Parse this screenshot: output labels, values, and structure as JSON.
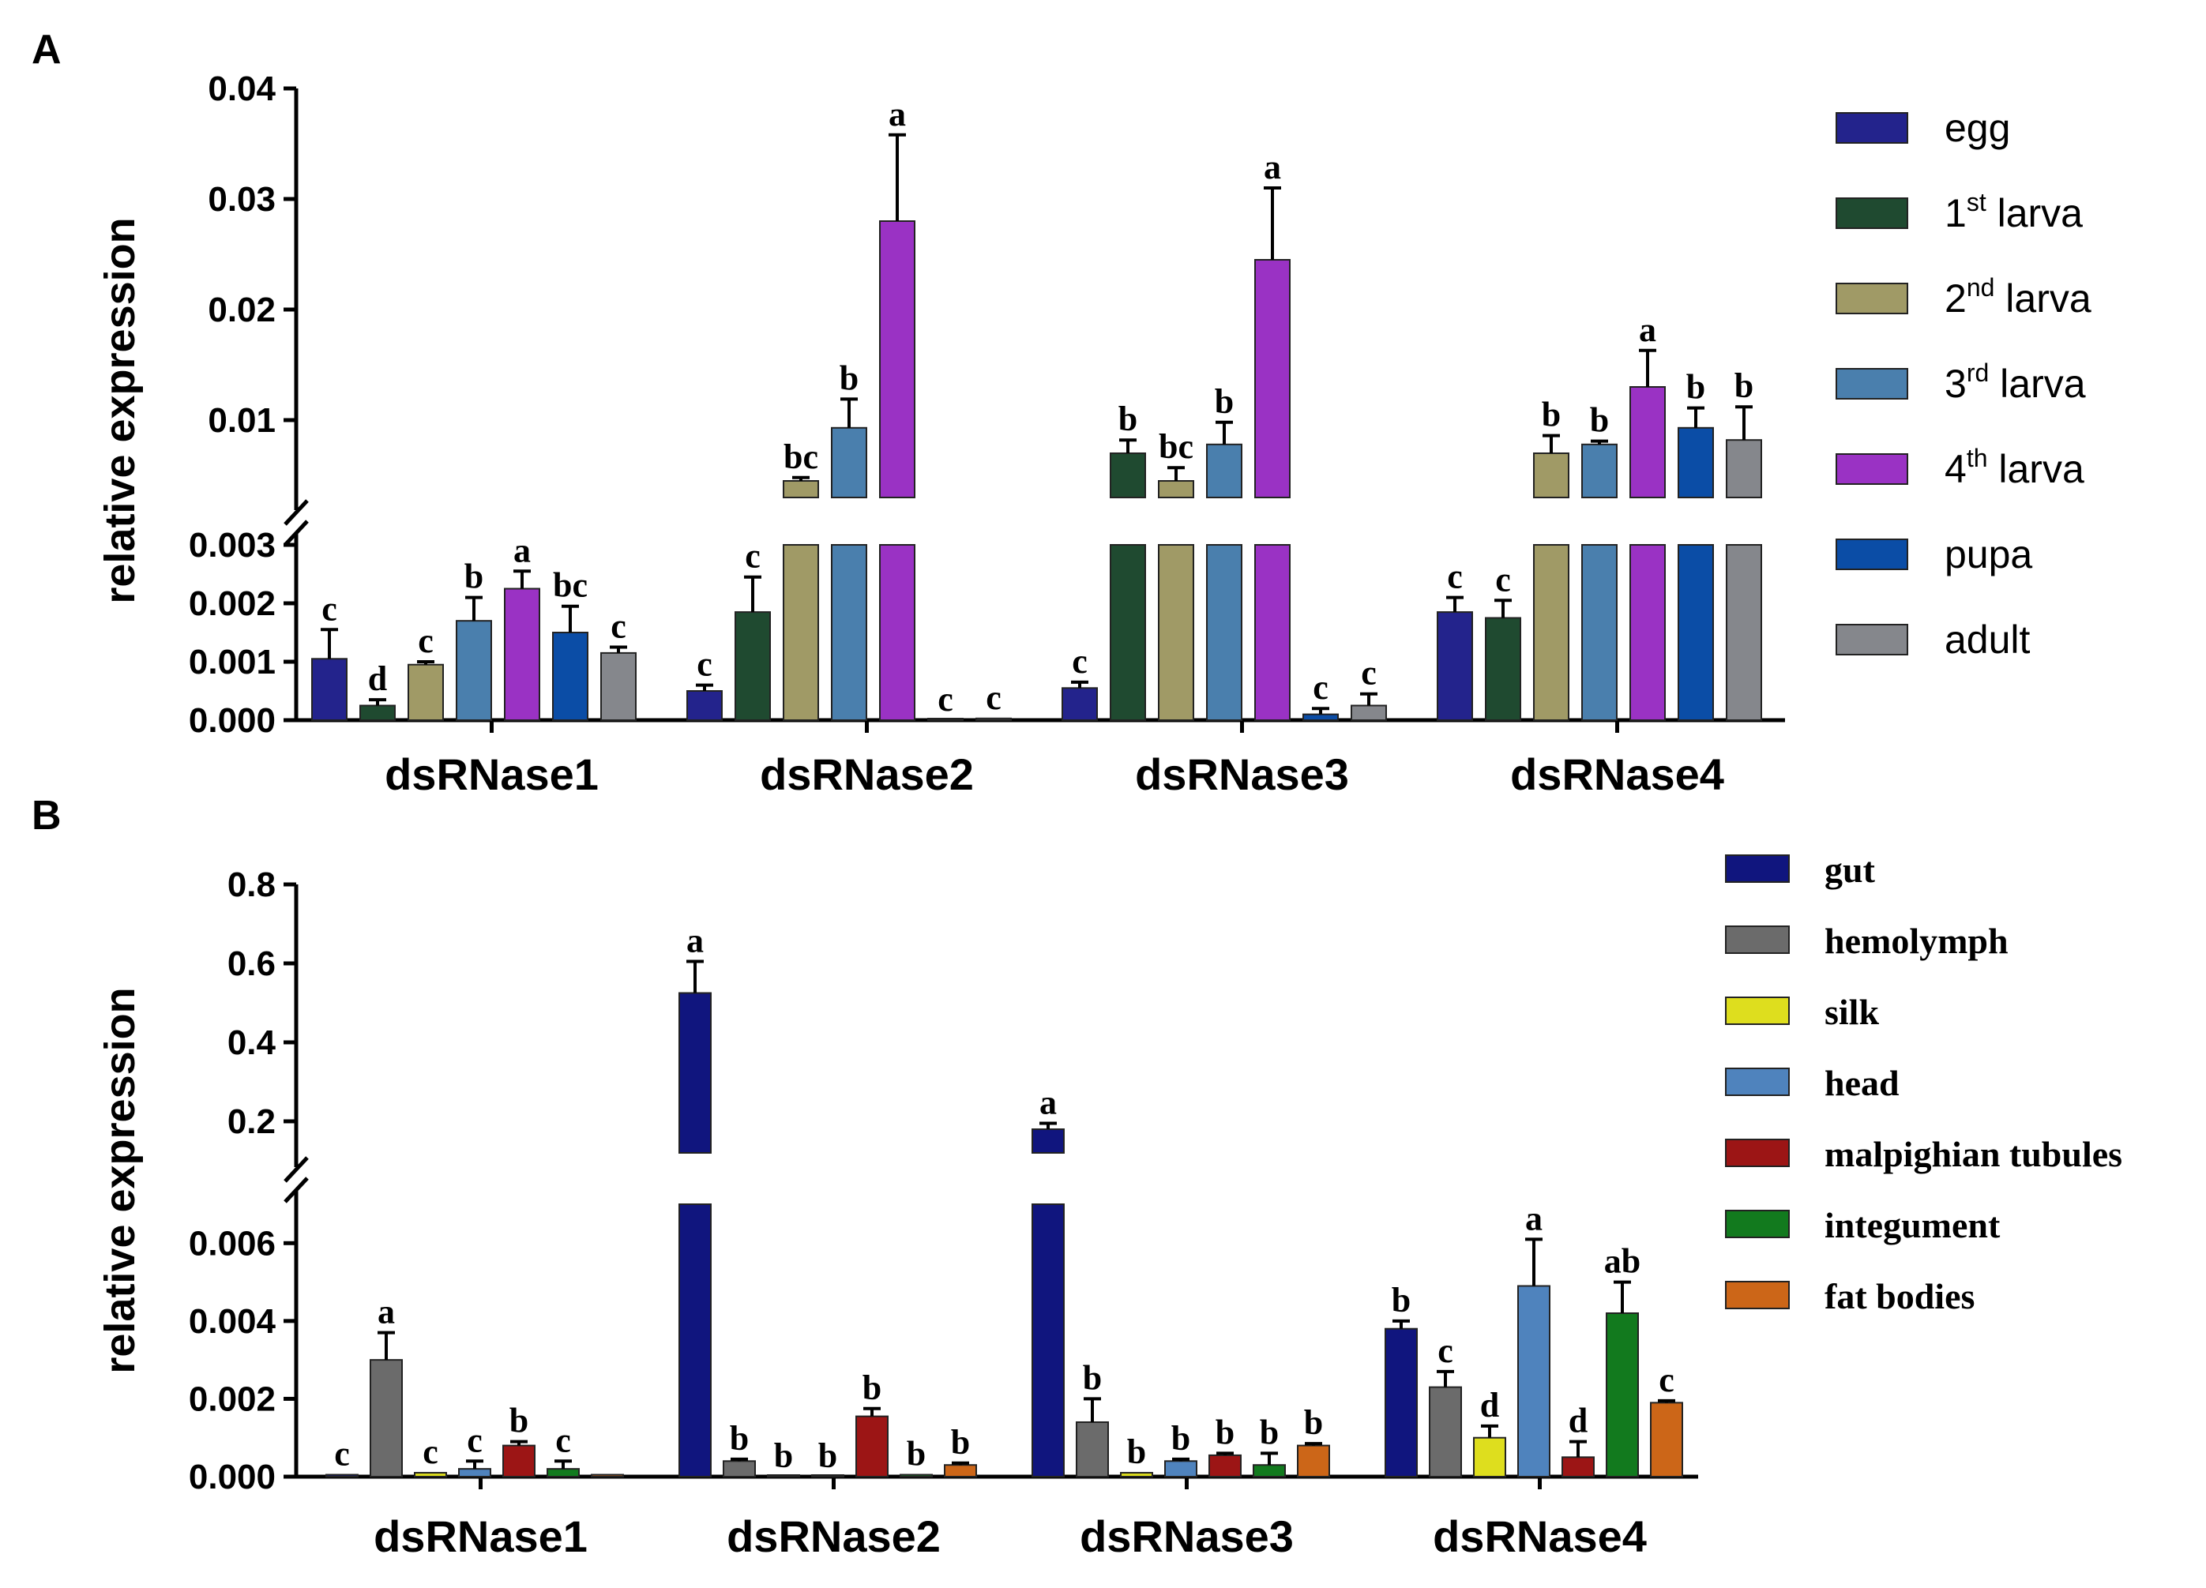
{
  "chart_data": [
    {
      "panel": "A",
      "type": "bar",
      "ylabel": "relative expression",
      "categories": [
        "dsRNase1",
        "dsRNase2",
        "dsRNase3",
        "dsRNase4"
      ],
      "axis_lower": {
        "ylim": [
          0,
          0.003
        ],
        "ticks": [
          "0.000",
          "0.001",
          "0.002",
          "0.003"
        ]
      },
      "axis_upper": {
        "ylim": [
          0.003,
          0.04
        ],
        "ticks": [
          "0.01",
          "0.02",
          "0.03",
          "0.04"
        ]
      },
      "legend": [
        {
          "base": "egg",
          "sup": "",
          "rest": ""
        },
        {
          "base": "1",
          "sup": "st",
          "rest": " larva"
        },
        {
          "base": "2",
          "sup": "nd",
          "rest": " larva"
        },
        {
          "base": "3",
          "sup": "rd",
          "rest": " larva"
        },
        {
          "base": "4",
          "sup": "th",
          "rest": " larva"
        },
        {
          "base": "pupa",
          "sup": "",
          "rest": ""
        },
        {
          "base": "adult",
          "sup": "",
          "rest": ""
        }
      ],
      "colors": [
        "#23238c",
        "#1f4a30",
        "#a09a66",
        "#4a7fad",
        "#9a32c4",
        "#0b4da6",
        "#85878c"
      ],
      "series": [
        {
          "name": "egg",
          "values": [
            0.00105,
            0.0005,
            0.00055,
            0.00185
          ],
          "errors": [
            0.0005,
            0.0001,
            0.0001,
            0.00025
          ],
          "labels": [
            "c",
            "c",
            "c",
            "c"
          ]
        },
        {
          "name": "1st larva",
          "values": [
            0.00025,
            0.00185,
            0.007,
            0.00175
          ],
          "errors": [
            0.0001,
            0.0006,
            0.0012,
            0.0003
          ],
          "labels": [
            "d",
            "c",
            "b",
            "c"
          ]
        },
        {
          "name": "2nd larva",
          "values": [
            0.00095,
            0.0045,
            0.0045,
            0.007
          ],
          "errors": [
            5e-05,
            0.0003,
            0.0012,
            0.0016
          ],
          "labels": [
            "c",
            "bc",
            "bc",
            "b"
          ]
        },
        {
          "name": "3rd larva",
          "values": [
            0.0017,
            0.0093,
            0.0078,
            0.0078
          ],
          "errors": [
            0.0004,
            0.0026,
            0.002,
            0.0003
          ],
          "labels": [
            "b",
            "b",
            "b",
            "b"
          ]
        },
        {
          "name": "4th larva",
          "values": [
            0.00225,
            0.028,
            0.0245,
            0.013
          ],
          "errors": [
            0.0003,
            0.0078,
            0.0065,
            0.0033
          ],
          "labels": [
            "a",
            "a",
            "a",
            "a"
          ]
        },
        {
          "name": "pupa",
          "values": [
            0.0015,
            0.0,
            0.0001,
            0.0093
          ],
          "errors": [
            0.00045,
            0.0,
            0.0001,
            0.0018
          ],
          "labels": [
            "bc",
            "c",
            "c",
            "b"
          ]
        },
        {
          "name": "adult",
          "values": [
            0.00115,
            3e-05,
            0.00025,
            0.0082
          ],
          "errors": [
            0.0001,
            0.0,
            0.0002,
            0.003
          ],
          "labels": [
            "c",
            "c",
            "c",
            "b"
          ]
        }
      ]
    },
    {
      "panel": "B",
      "type": "bar",
      "ylabel": "relative expression",
      "categories": [
        "dsRNase1",
        "dsRNase2",
        "dsRNase3",
        "dsRNase4"
      ],
      "axis_lower": {
        "ylim": [
          0,
          0.007
        ],
        "ticks": [
          "0.000",
          "0.002",
          "0.004",
          "0.006"
        ]
      },
      "axis_upper": {
        "ylim": [
          0.12,
          0.8
        ],
        "ticks": [
          "0.2",
          "0.4",
          "0.6",
          "0.8"
        ]
      },
      "legend": [
        {
          "base": "gut",
          "sup": "",
          "rest": ""
        },
        {
          "base": "hemolymph",
          "sup": "",
          "rest": ""
        },
        {
          "base": "silk",
          "sup": "",
          "rest": ""
        },
        {
          "base": "head",
          "sup": "",
          "rest": ""
        },
        {
          "base": "malpighian tubules",
          "sup": "",
          "rest": ""
        },
        {
          "base": "integument",
          "sup": "",
          "rest": ""
        },
        {
          "base": "fat bodies",
          "sup": "",
          "rest": ""
        }
      ],
      "colors": [
        "#10157e",
        "#6b6b6b",
        "#dede1e",
        "#4f83bd",
        "#9c1515",
        "#127a1e",
        "#cc6618"
      ],
      "series": [
        {
          "name": "gut",
          "values": [
            5e-05,
            0.525,
            0.18,
            0.0038
          ],
          "errors": [
            0.0,
            0.08,
            0.015,
            0.0002
          ],
          "labels": [
            "c",
            "a",
            "a",
            "b"
          ]
        },
        {
          "name": "hemolymph",
          "values": [
            0.003,
            0.0004,
            0.0014,
            0.0023
          ],
          "errors": [
            0.0007,
            5e-05,
            0.0006,
            0.0004
          ],
          "labels": [
            "a",
            "b",
            "b",
            "c"
          ]
        },
        {
          "name": "silk",
          "values": [
            0.0001,
            0.0,
            0.0001,
            0.001
          ],
          "errors": [
            0.0,
            0.0,
            0.0,
            0.0003
          ],
          "labels": [
            "c",
            "b",
            "b",
            "d"
          ]
        },
        {
          "name": "head",
          "values": [
            0.0002,
            0.0,
            0.0004,
            0.0049
          ],
          "errors": [
            0.0002,
            0.0,
            5e-05,
            0.0012
          ],
          "labels": [
            "c",
            "b",
            "b",
            "a"
          ]
        },
        {
          "name": "malpighian tubules",
          "values": [
            0.0008,
            0.00155,
            0.00055,
            0.0005
          ],
          "errors": [
            0.0001,
            0.0002,
            5e-05,
            0.0004
          ],
          "labels": [
            "b",
            "b",
            "b",
            "d"
          ]
        },
        {
          "name": "integument",
          "values": [
            0.0002,
            5e-05,
            0.0003,
            0.0042
          ],
          "errors": [
            0.0002,
            0.0,
            0.0003,
            0.0008
          ],
          "labels": [
            "c",
            "b",
            "b",
            "ab"
          ]
        },
        {
          "name": "fat bodies",
          "values": [
            5e-05,
            0.0003,
            0.0008,
            0.0019
          ],
          "errors": [
            0.0,
            5e-05,
            5e-05,
            5e-05
          ],
          "labels": [
            "",
            "b",
            "b",
            "c"
          ]
        }
      ]
    }
  ]
}
